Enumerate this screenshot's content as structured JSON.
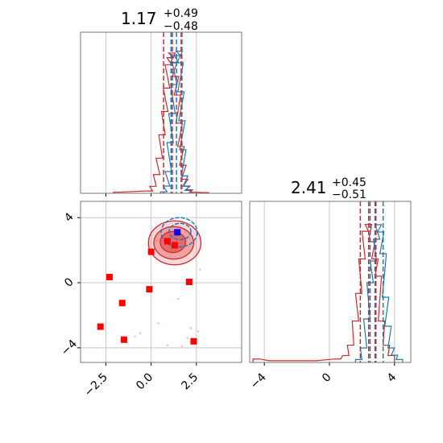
{
  "chart_data": {
    "type": "corner",
    "colors": {
      "series_a": "#1f77b4",
      "series_b": "#d62728",
      "markers_b": "#ff0000",
      "markers_a": "#0000ff",
      "grid": "#c8c8c8"
    },
    "grid": true,
    "titles": {
      "param1": {
        "value": "1.17",
        "plus": "+0.49",
        "minus": "−0.48"
      },
      "param2": {
        "value": "2.41",
        "plus": "+0.45",
        "minus": "−0.51"
      }
    },
    "param1_range": [
      -3.9,
      5.0
    ],
    "param2_range": [
      -4.9,
      5.0
    ],
    "param1_ticks": [
      {
        "v": -2.5,
        "label": "−2.5"
      },
      {
        "v": 0.0,
        "label": "0.0"
      },
      {
        "v": 2.5,
        "label": "2.5"
      }
    ],
    "param2_ticks": [
      {
        "v": -4,
        "label": "−4"
      },
      {
        "v": 0,
        "label": "0"
      },
      {
        "v": 4,
        "label": "4"
      }
    ],
    "marginal_param1": {
      "red_quantiles": [
        0.69,
        1.17,
        1.66
      ],
      "blue_quantiles": [
        1.1,
        1.4,
        1.7
      ],
      "red_hist": [
        [
          -1.9,
          0.005
        ],
        [
          -0.1,
          0.01
        ],
        [
          0.1,
          0.03
        ],
        [
          0.3,
          0.08
        ],
        [
          0.45,
          0.15
        ],
        [
          0.6,
          0.25
        ],
        [
          0.75,
          0.35
        ],
        [
          0.85,
          0.45
        ],
        [
          0.95,
          0.55
        ],
        [
          1.05,
          0.58
        ],
        [
          1.15,
          0.6
        ],
        [
          1.25,
          0.56
        ],
        [
          1.35,
          0.5
        ],
        [
          1.45,
          0.42
        ],
        [
          1.55,
          0.3
        ],
        [
          1.65,
          0.2
        ],
        [
          1.75,
          0.12
        ],
        [
          1.85,
          0.06
        ],
        [
          1.95,
          0.03
        ],
        [
          2.1,
          0.015
        ],
        [
          2.3,
          0.005
        ],
        [
          3.0,
          0.003
        ]
      ],
      "blue_hist": [
        [
          0.7,
          0.01
        ],
        [
          0.85,
          0.05
        ],
        [
          0.95,
          0.15
        ],
        [
          1.05,
          0.35
        ],
        [
          1.15,
          0.55
        ],
        [
          1.25,
          0.75
        ],
        [
          1.35,
          0.9
        ],
        [
          1.45,
          0.95
        ],
        [
          1.55,
          0.98
        ],
        [
          1.6,
          0.9
        ],
        [
          1.65,
          0.7
        ],
        [
          1.7,
          0.5
        ],
        [
          1.75,
          0.3
        ],
        [
          1.85,
          0.12
        ],
        [
          1.95,
          0.05
        ],
        [
          2.05,
          0.02
        ]
      ]
    },
    "marginal_param2": {
      "red_quantiles": [
        1.9,
        2.41,
        2.86
      ],
      "blue_quantiles": [
        2.5,
        2.8,
        3.3
      ],
      "red_hist": [
        [
          -4.5,
          0.01
        ],
        [
          -3.5,
          0.005
        ],
        [
          -2.0,
          0.005
        ],
        [
          -1.0,
          0.005
        ],
        [
          0.5,
          0.01
        ],
        [
          1.0,
          0.02
        ],
        [
          1.3,
          0.05
        ],
        [
          1.6,
          0.12
        ],
        [
          1.8,
          0.2
        ],
        [
          2.0,
          0.3
        ],
        [
          2.2,
          0.38
        ],
        [
          2.4,
          0.4
        ],
        [
          2.6,
          0.35
        ],
        [
          2.8,
          0.3
        ],
        [
          3.0,
          0.25
        ],
        [
          3.2,
          0.12
        ],
        [
          3.5,
          0.05
        ],
        [
          3.8,
          0.02
        ]
      ],
      "blue_hist": [
        [
          1.8,
          0.02
        ],
        [
          2.1,
          0.1
        ],
        [
          2.3,
          0.3
        ],
        [
          2.5,
          0.55
        ],
        [
          2.7,
          0.7
        ],
        [
          2.9,
          0.85
        ],
        [
          3.0,
          0.95
        ],
        [
          3.15,
          0.9
        ],
        [
          3.3,
          0.75
        ],
        [
          3.45,
          0.45
        ],
        [
          3.6,
          0.25
        ],
        [
          3.8,
          0.1
        ],
        [
          4.0,
          0.05
        ],
        [
          4.3,
          0.02
        ]
      ]
    },
    "joint": {
      "red_contours": [
        {
          "cx": 1.3,
          "cy": 2.45,
          "rx": 1.45,
          "ry": 1.35,
          "opacity": 0.18
        },
        {
          "cx": 1.25,
          "cy": 2.45,
          "rx": 1.1,
          "ry": 1.0,
          "opacity": 0.3
        },
        {
          "cx": 1.2,
          "cy": 2.5,
          "rx": 0.7,
          "ry": 0.65,
          "opacity": 0.45
        }
      ],
      "blue_contours": [
        {
          "cx": 1.55,
          "cy": 3.1,
          "rx": 1.0,
          "ry": 0.9
        },
        {
          "cx": 1.6,
          "cy": 3.15,
          "rx": 0.6,
          "ry": 0.5
        }
      ],
      "red_markers": [
        [
          -2.3,
          0.35
        ],
        [
          -1.6,
          -1.25
        ],
        [
          -1.5,
          -3.5
        ],
        [
          -2.8,
          -2.7
        ],
        [
          -0.1,
          -0.4
        ],
        [
          0.0,
          1.9
        ],
        [
          0.9,
          2.55
        ],
        [
          1.3,
          2.3
        ],
        [
          2.1,
          0.05
        ],
        [
          2.35,
          -3.6
        ]
      ],
      "blue_markers": [
        [
          1.45,
          3.1
        ]
      ],
      "faint_points": [
        [
          0.4,
          -2.5
        ],
        [
          2.2,
          -2.8
        ],
        [
          -0.9,
          -3.3
        ],
        [
          1.7,
          -3.9
        ],
        [
          2.6,
          -3.0
        ],
        [
          -0.6,
          -3.1
        ],
        [
          2.0,
          -3.4
        ],
        [
          -1.3,
          -3.7
        ],
        [
          0.9,
          -3.85
        ],
        [
          1.5,
          -1.0
        ],
        [
          0.3,
          2.6
        ],
        [
          2.7,
          0.8
        ]
      ]
    }
  }
}
